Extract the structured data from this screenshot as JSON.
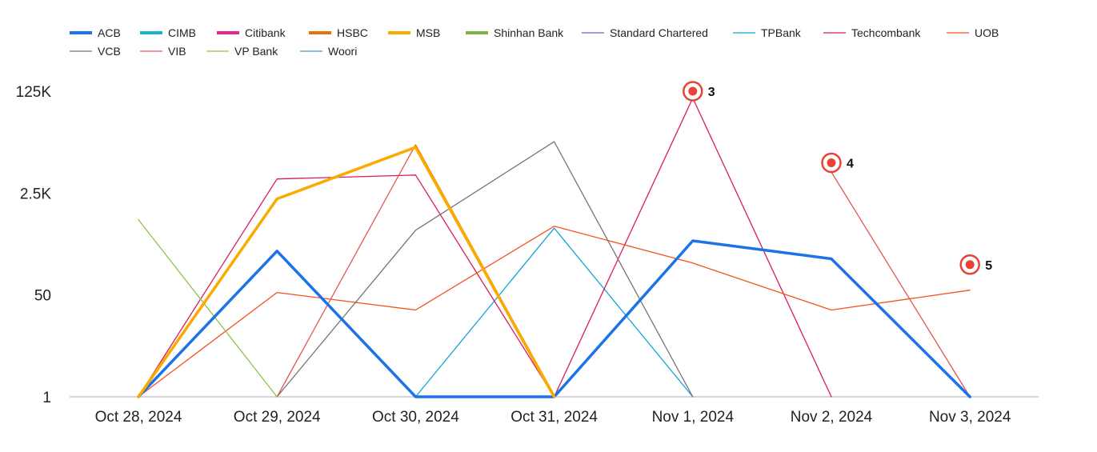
{
  "chart_data": {
    "type": "line",
    "title": "",
    "xlabel": "",
    "ylabel": "",
    "y_scale": "log",
    "y_ticks": [
      {
        "value": 1,
        "label": "1"
      },
      {
        "value": 50,
        "label": "50"
      },
      {
        "value": 2500,
        "label": "2.5K"
      },
      {
        "value": 125000,
        "label": "125K"
      }
    ],
    "ylim": [
      1,
      125000
    ],
    "categories": [
      "Oct 28, 2024",
      "Oct 29, 2024",
      "Oct 30, 2024",
      "Oct 31, 2024",
      "Nov 1, 2024",
      "Nov 2, 2024",
      "Nov 3, 2024"
    ],
    "legend_position": "top-left",
    "grid": false,
    "series": [
      {
        "name": "ACB",
        "color": "#1a73e8",
        "width": 3.5,
        "values": [
          1,
          270,
          1,
          1,
          400,
          200,
          1
        ]
      },
      {
        "name": "CIMB",
        "color": "#12b5cb",
        "width": 3.5,
        "values": [
          null,
          null,
          null,
          null,
          null,
          null,
          null
        ]
      },
      {
        "name": "Citibank",
        "color": "#e52592",
        "width": 3.5,
        "values": [
          null,
          null,
          null,
          null,
          null,
          null,
          null
        ]
      },
      {
        "name": "HSBC",
        "color": "#e8710a",
        "width": 3.5,
        "values": [
          1,
          null,
          15000,
          1,
          null,
          null,
          null
        ]
      },
      {
        "name": "MSB",
        "color": "#f9ab00",
        "width": 3.5,
        "values": [
          1,
          2000,
          14500,
          1,
          null,
          null,
          null
        ]
      },
      {
        "name": "Shinhan Bank",
        "color": "#7cb342",
        "width": 3.5,
        "values": [
          null,
          null,
          null,
          null,
          null,
          null,
          null
        ]
      },
      {
        "name": "Standard Chartered",
        "color": "#7e57c2",
        "width": 1.3,
        "values": [
          null,
          null,
          null,
          null,
          null,
          null,
          null
        ]
      },
      {
        "name": "TPBank",
        "color": "#12a4d8",
        "width": 1.3,
        "values": [
          null,
          null,
          1,
          650,
          1,
          null,
          null
        ]
      },
      {
        "name": "Techcombank",
        "color": "#d81b60",
        "width": 1.3,
        "values": [
          1,
          4300,
          5000,
          1,
          96000,
          1,
          null
        ]
      },
      {
        "name": "UOB",
        "color": "#f4511e",
        "width": 1.3,
        "values": [
          1,
          55,
          28,
          700,
          170,
          28,
          60
        ]
      },
      {
        "name": "VCB",
        "color": "#757575",
        "width": 1.3,
        "values": [
          null,
          1,
          600,
          18000,
          1,
          null,
          null
        ]
      },
      {
        "name": "VIB",
        "color": "#e35656",
        "width": 1.3,
        "values": [
          null,
          1,
          16000,
          1,
          null,
          5600,
          1
        ]
      },
      {
        "name": "VP Bank",
        "color": "#8bc34a",
        "width": 1.3,
        "values": [
          900,
          1,
          null,
          null,
          null,
          null,
          null
        ]
      },
      {
        "name": "Woori",
        "color": "#4a90c2",
        "width": 1.3,
        "values": [
          null,
          null,
          null,
          null,
          null,
          null,
          null
        ]
      }
    ],
    "annotations": [
      {
        "label": "3",
        "category": "Nov 1, 2024",
        "value": 125000
      },
      {
        "label": "4",
        "category": "Nov 2, 2024",
        "value": 8000
      },
      {
        "label": "5",
        "category": "Nov 3, 2024",
        "value": 160
      }
    ],
    "annotation_color": "#ea4335"
  }
}
